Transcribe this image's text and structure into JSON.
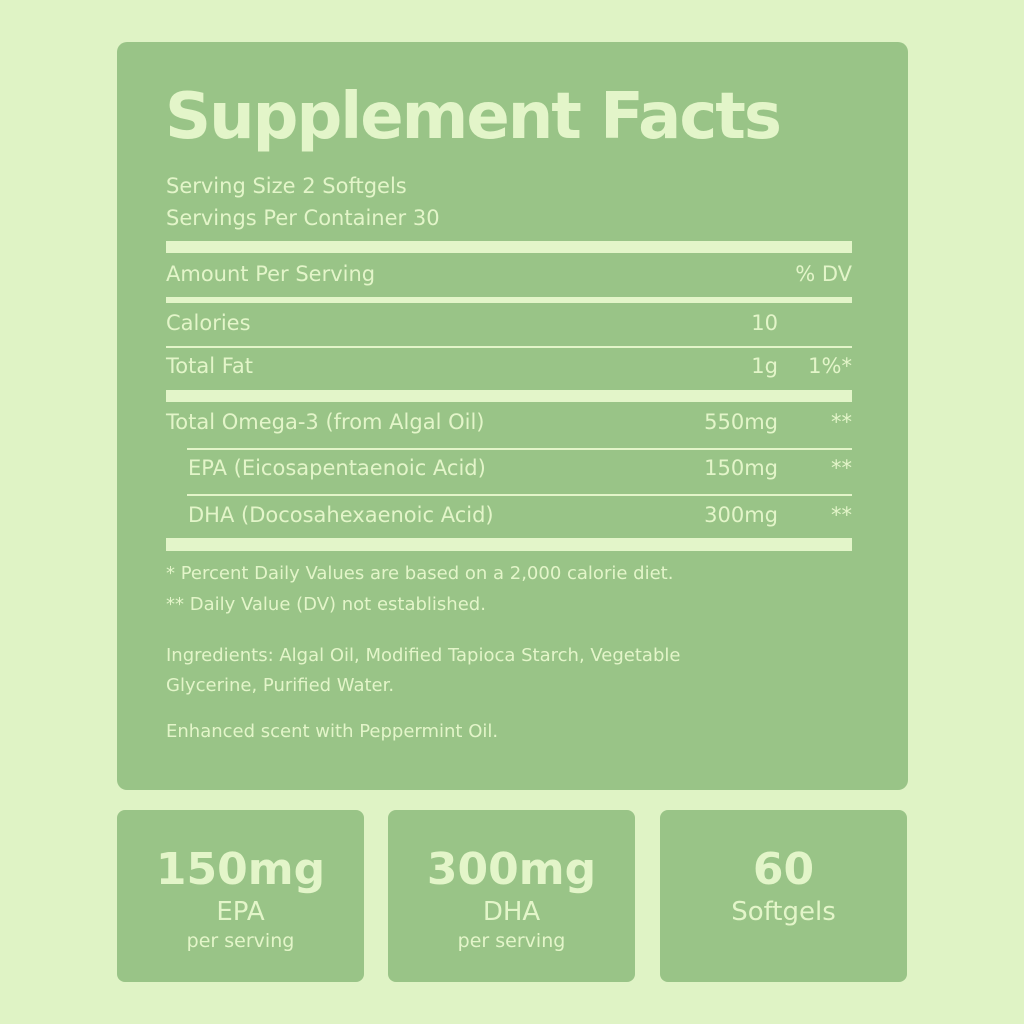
{
  "title": "Supplement Facts",
  "serving_size": "Serving Size 2 Softgels",
  "servings_per_container": "Servings Per Container 30",
  "header": {
    "amount": "Amount Per Serving",
    "dv": "% DV"
  },
  "rows": [
    {
      "name": "Calories",
      "amount": "10",
      "dv": ""
    },
    {
      "name": "Total Fat",
      "amount": "1g",
      "dv": "1%*"
    },
    {
      "name": "Total Omega-3 (from Algal Oil)",
      "amount": "550mg",
      "dv": "**"
    },
    {
      "name": "EPA (Eicosapentaenoic Acid)",
      "amount": "150mg",
      "dv": "**"
    },
    {
      "name": "DHA (Docosahexaenoic Acid)",
      "amount": "300mg",
      "dv": "**"
    }
  ],
  "footnotes": [
    "* Percent Daily Values are based on a 2,000 calorie diet.",
    "** Daily Value (DV) not established."
  ],
  "ingredients": [
    "Ingredients: Algal Oil, Modified Tapioca Starch, Vegetable",
    "Glycerine, Purified Water."
  ],
  "scent": "Enhanced scent with Peppermint Oil.",
  "badges": [
    {
      "value": "150mg",
      "label": "EPA",
      "sub": "per serving"
    },
    {
      "value": "300mg",
      "label": "DHA",
      "sub": "per serving"
    },
    {
      "value": "60",
      "label": "Softgels",
      "sub": ""
    }
  ],
  "colors": {
    "background": "#dff3c5",
    "panel": "#99c487",
    "text": "#e3f5c9"
  }
}
